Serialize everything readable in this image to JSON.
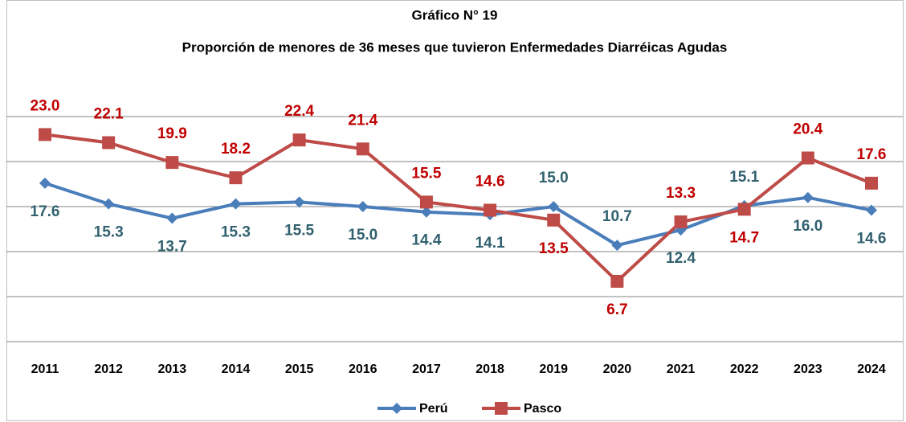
{
  "chart_data": {
    "type": "line",
    "title": "Gráfico N° 19",
    "subtitle": "Proporción de menores de 36 meses que tuvieron Enfermedades Diarréicas Agudas",
    "categories": [
      "2011",
      "2012",
      "2013",
      "2014",
      "2015",
      "2016",
      "2017",
      "2018",
      "2019",
      "2020",
      "2021",
      "2022",
      "2023",
      "2024"
    ],
    "series": [
      {
        "name": "Perú",
        "color": "#4a7ebb",
        "label_color": "#31616f",
        "marker": "diamond",
        "values": [
          17.6,
          15.3,
          13.7,
          15.3,
          15.5,
          15.0,
          14.4,
          14.1,
          15.0,
          10.7,
          12.4,
          15.1,
          16.0,
          14.6
        ]
      },
      {
        "name": "Pasco",
        "color": "#be4b48",
        "label_color": "#c00000",
        "marker": "square",
        "values": [
          23.0,
          22.1,
          19.9,
          18.2,
          22.4,
          21.4,
          15.5,
          14.6,
          13.5,
          6.7,
          13.3,
          14.7,
          20.4,
          17.6
        ]
      }
    ],
    "ylim": [
      0,
      25
    ],
    "yticks": [
      0,
      5,
      10,
      15,
      20,
      25
    ],
    "grid": true,
    "legend": "bottom"
  }
}
